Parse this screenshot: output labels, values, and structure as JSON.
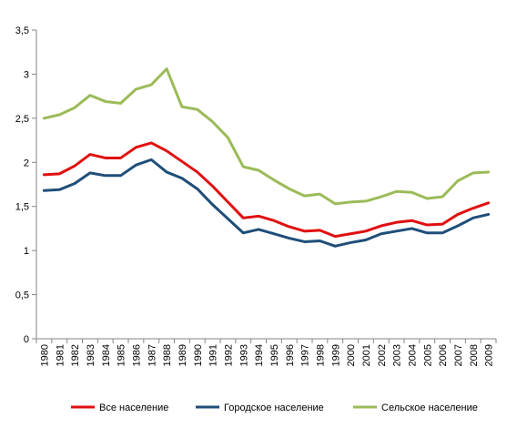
{
  "chart_data": {
    "type": "line",
    "title": "",
    "xlabel": "",
    "ylabel": "",
    "ylim": [
      0,
      3.5
    ],
    "yticks": [
      "0",
      "0,5",
      "1",
      "1,5",
      "2",
      "2,5",
      "3",
      "3,5"
    ],
    "ytick_values": [
      0,
      0.5,
      1,
      1.5,
      2,
      2.5,
      3,
      3.5
    ],
    "grid": false,
    "legend_position": "bottom",
    "x": [
      "1980",
      "1981",
      "1982",
      "1983",
      "1984",
      "1985",
      "1986",
      "1987",
      "1988",
      "1989",
      "1990",
      "1991",
      "1992",
      "1993",
      "1994",
      "1995",
      "1996",
      "1997",
      "1998",
      "1999",
      "2000",
      "2001",
      "2002",
      "2003",
      "2004",
      "2005",
      "2006",
      "2007",
      "2008",
      "2009"
    ],
    "series": [
      {
        "name": "Все население",
        "color": "#e01010",
        "values": [
          1.86,
          1.87,
          1.96,
          2.09,
          2.05,
          2.05,
          2.17,
          2.22,
          2.13,
          2.01,
          1.89,
          1.73,
          1.55,
          1.37,
          1.39,
          1.34,
          1.27,
          1.22,
          1.23,
          1.16,
          1.19,
          1.22,
          1.28,
          1.32,
          1.34,
          1.29,
          1.3,
          1.41,
          1.48,
          1.54
        ]
      },
      {
        "name": "Городское население",
        "color": "#1f4e79",
        "values": [
          1.68,
          1.69,
          1.76,
          1.88,
          1.85,
          1.85,
          1.97,
          2.03,
          1.89,
          1.82,
          1.7,
          1.52,
          1.36,
          1.2,
          1.24,
          1.19,
          1.14,
          1.1,
          1.11,
          1.05,
          1.09,
          1.12,
          1.19,
          1.22,
          1.25,
          1.2,
          1.2,
          1.28,
          1.37,
          1.41
        ]
      },
      {
        "name": "Сельское население",
        "color": "#9bbb59",
        "values": [
          2.5,
          2.54,
          2.62,
          2.76,
          2.69,
          2.67,
          2.83,
          2.88,
          3.06,
          2.63,
          2.6,
          2.46,
          2.28,
          1.95,
          1.91,
          1.8,
          1.7,
          1.62,
          1.64,
          1.53,
          1.55,
          1.56,
          1.61,
          1.67,
          1.66,
          1.59,
          1.61,
          1.79,
          1.88,
          1.89
        ]
      }
    ]
  }
}
